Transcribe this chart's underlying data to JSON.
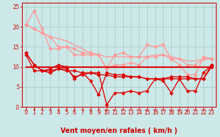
{
  "background_color": "#cce8e8",
  "grid_color": "#aacccc",
  "xlabel": "Vent moyen/en rafales ( km/h )",
  "x_ticks": [
    0,
    1,
    2,
    3,
    4,
    5,
    6,
    7,
    8,
    9,
    10,
    11,
    12,
    13,
    14,
    15,
    16,
    17,
    18,
    19,
    20,
    21,
    22,
    23
  ],
  "ylim": [
    0,
    26
  ],
  "yticks": [
    0,
    5,
    10,
    15,
    20,
    25
  ],
  "lines": [
    {
      "color": "#ff9999",
      "lw": 1.0,
      "marker": null,
      "data_x": [
        0,
        1,
        2,
        3,
        4,
        5,
        6,
        7,
        8,
        9,
        10,
        11,
        12,
        13,
        14,
        15,
        16,
        17,
        18,
        19,
        20,
        21,
        22,
        23
      ],
      "data_y": [
        20.5,
        19.5,
        18.5,
        17.5,
        17.0,
        16.5,
        15.5,
        14.5,
        13.5,
        13.0,
        12.5,
        12.5,
        12.5,
        12.5,
        12.5,
        12.5,
        13.0,
        13.0,
        12.5,
        12.0,
        11.5,
        11.5,
        12.0,
        12.0
      ]
    },
    {
      "color": "#ff9999",
      "lw": 1.0,
      "marker": "D",
      "ms": 2.5,
      "data_x": [
        0,
        1,
        2,
        3,
        4,
        5,
        6,
        7,
        8,
        9,
        10,
        11,
        12,
        13,
        14,
        15,
        16,
        17,
        18,
        19,
        20,
        21,
        22,
        23
      ],
      "data_y": [
        20.5,
        24.0,
        19.5,
        14.5,
        14.5,
        15.0,
        14.5,
        13.5,
        13.5,
        13.0,
        9.5,
        13.0,
        13.5,
        12.5,
        12.5,
        15.5,
        15.0,
        15.5,
        12.0,
        12.0,
        10.5,
        10.5,
        12.0,
        12.0
      ]
    },
    {
      "color": "#ff9999",
      "lw": 1.0,
      "marker": "D",
      "ms": 2.5,
      "data_x": [
        0,
        1,
        2,
        3,
        4,
        5,
        6,
        7,
        8,
        9,
        10,
        11,
        12,
        13,
        14,
        15,
        16,
        17,
        18,
        19,
        20,
        21,
        22,
        23
      ],
      "data_y": [
        20.5,
        19.5,
        18.5,
        17.5,
        15.0,
        15.0,
        13.0,
        13.0,
        13.0,
        13.0,
        9.5,
        10.5,
        10.5,
        11.0,
        10.5,
        12.5,
        12.5,
        13.0,
        12.0,
        10.5,
        8.0,
        8.0,
        12.5,
        12.0
      ]
    },
    {
      "color": "#dd0000",
      "lw": 1.5,
      "marker": null,
      "data_x": [
        0,
        1,
        2,
        3,
        4,
        5,
        6,
        7,
        8,
        9,
        10,
        11,
        12,
        13,
        14,
        15,
        16,
        17,
        18,
        19,
        20,
        21,
        22,
        23
      ],
      "data_y": [
        10.0,
        10.0,
        10.0,
        10.0,
        10.0,
        10.0,
        10.0,
        10.0,
        10.0,
        10.0,
        10.0,
        10.0,
        10.0,
        10.0,
        10.0,
        10.0,
        10.0,
        10.0,
        10.0,
        10.0,
        10.0,
        10.0,
        10.0,
        10.0
      ]
    },
    {
      "color": "#dd0000",
      "lw": 1.0,
      "marker": "D",
      "ms": 2.5,
      "data_x": [
        0,
        1,
        2,
        3,
        4,
        5,
        6,
        7,
        8,
        9,
        10,
        11,
        12,
        13,
        14,
        15,
        16,
        17,
        18,
        19,
        20,
        21,
        22,
        23
      ],
      "data_y": [
        13.5,
        10.5,
        9.0,
        9.5,
        10.5,
        10.0,
        7.0,
        8.5,
        8.5,
        8.5,
        0.5,
        3.5,
        3.5,
        4.0,
        3.5,
        4.0,
        7.0,
        6.5,
        3.5,
        7.0,
        4.0,
        4.0,
        8.5,
        10.5
      ]
    },
    {
      "color": "#dd0000",
      "lw": 1.0,
      "marker": "D",
      "ms": 2.5,
      "data_x": [
        0,
        1,
        2,
        3,
        4,
        5,
        6,
        7,
        8,
        9,
        10,
        11,
        12,
        13,
        14,
        15,
        16,
        17,
        18,
        19,
        20,
        21,
        22,
        23
      ],
      "data_y": [
        13.5,
        10.5,
        9.0,
        8.5,
        9.5,
        9.5,
        7.5,
        8.0,
        8.5,
        8.0,
        8.0,
        7.5,
        7.5,
        7.5,
        7.5,
        7.0,
        7.0,
        7.0,
        7.5,
        7.5,
        7.5,
        7.0,
        7.0,
        10.5
      ]
    },
    {
      "color": "#dd0000",
      "lw": 1.0,
      "marker": "D",
      "ms": 2.5,
      "data_x": [
        0,
        1,
        2,
        3,
        4,
        5,
        6,
        7,
        8,
        9,
        10,
        11,
        12,
        13,
        14,
        15,
        16,
        17,
        18,
        19,
        20,
        21,
        22,
        23
      ],
      "data_y": [
        13.0,
        9.0,
        9.0,
        9.0,
        9.5,
        9.0,
        9.0,
        8.5,
        6.5,
        3.0,
        8.5,
        8.0,
        8.0,
        7.5,
        7.5,
        7.0,
        7.0,
        7.0,
        7.0,
        7.0,
        7.0,
        7.0,
        7.0,
        10.0
      ]
    }
  ],
  "arrow_angles": [
    225,
    200,
    210,
    225,
    315,
    270,
    290,
    315,
    315,
    290,
    30,
    45,
    210,
    210,
    200,
    45,
    60,
    315,
    360,
    45,
    360,
    225,
    225,
    210
  ],
  "axis_label_fontsize": 7,
  "tick_fontsize": 5.5
}
